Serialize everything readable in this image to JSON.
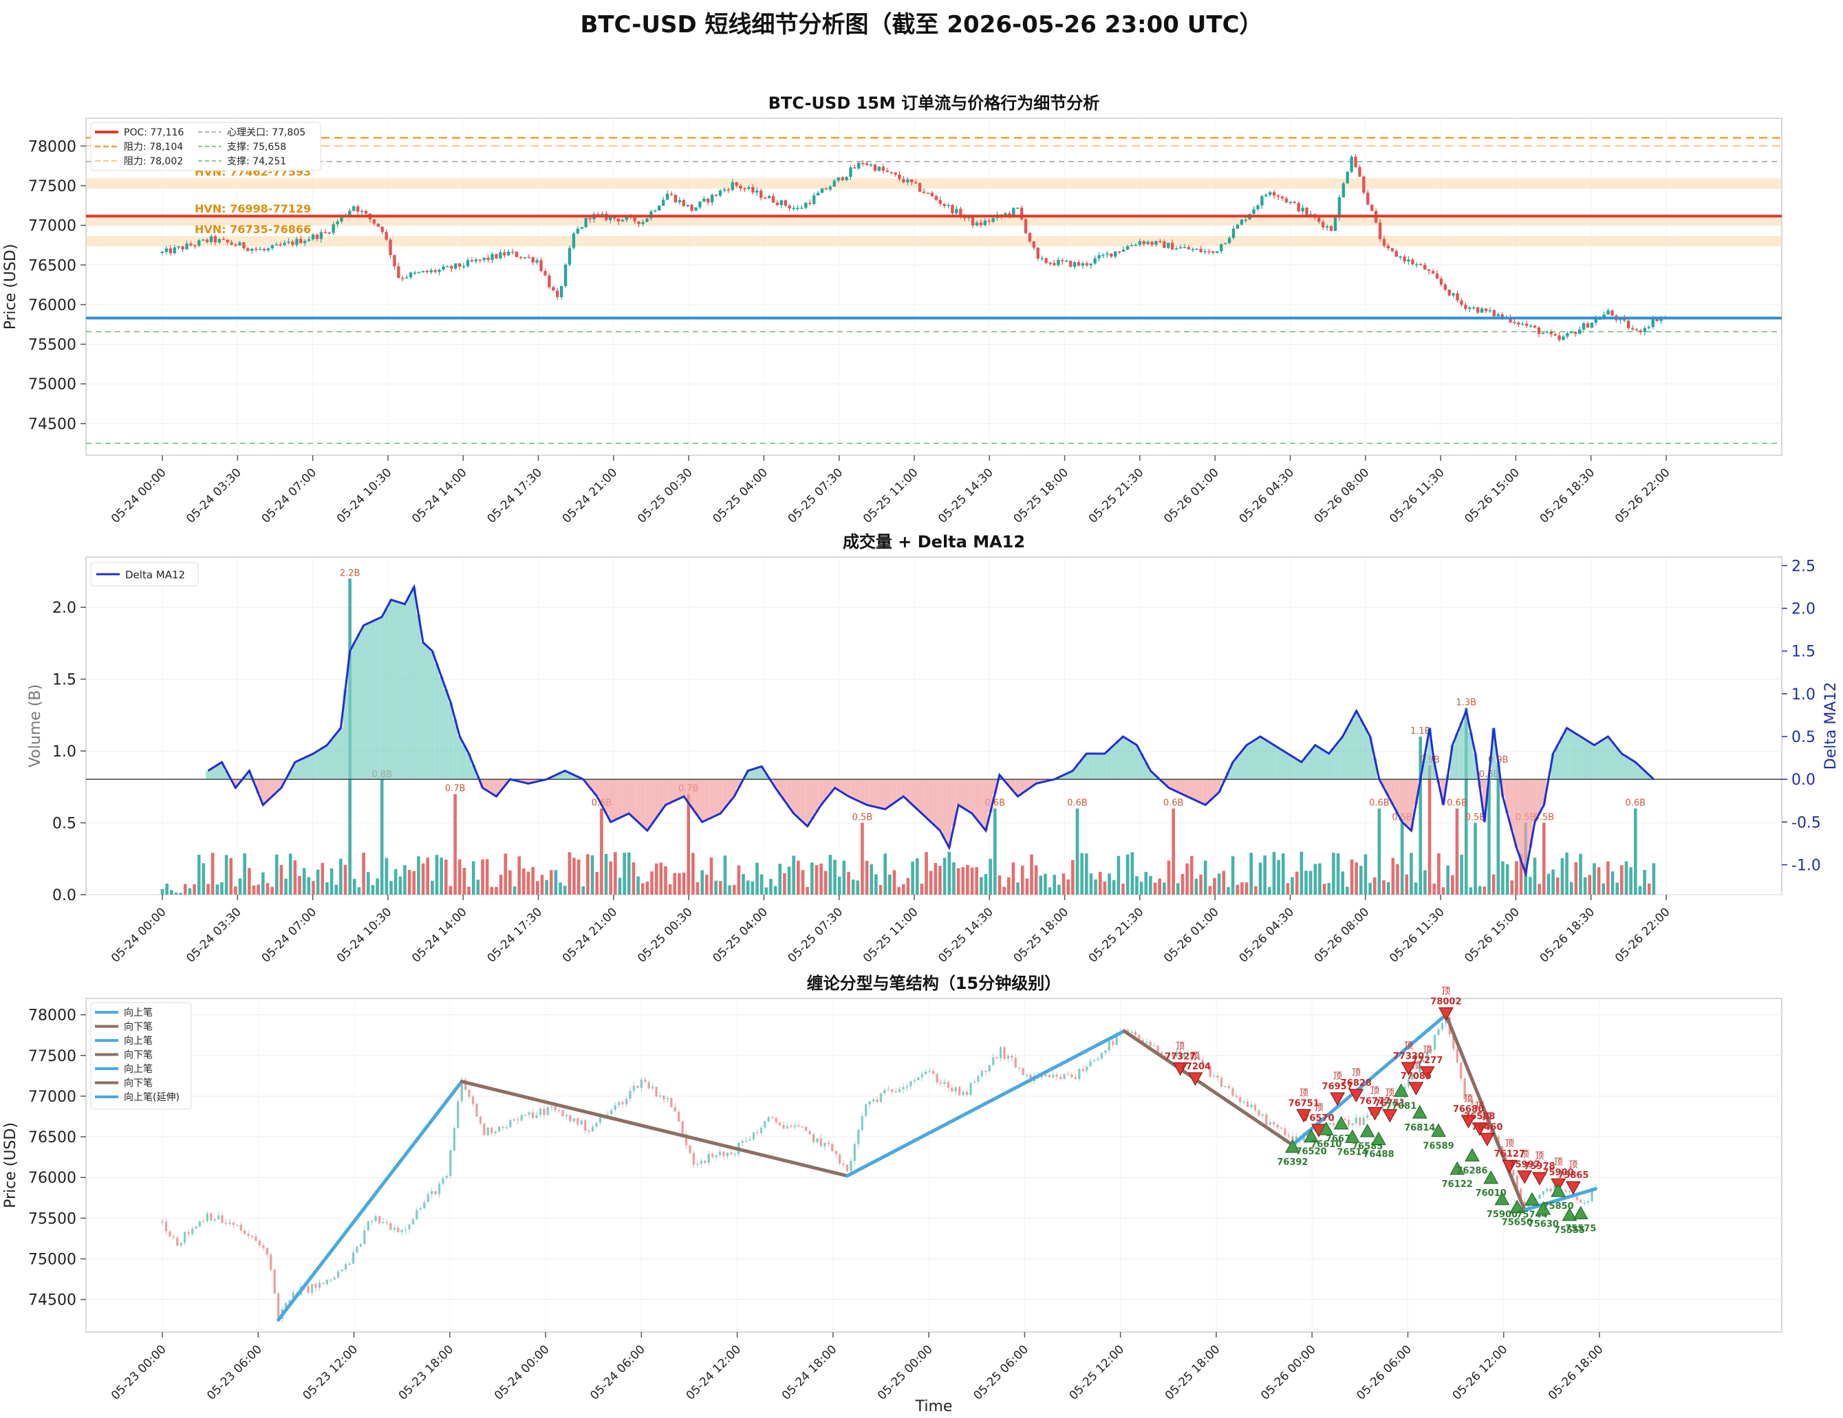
{
  "title": "BTC-USD 短线细节分析图（截至 2026-05-26 23:00 UTC）",
  "colors": {
    "up": "#26a69a",
    "down": "#e05555",
    "poc": "#e0382c",
    "resistance": "#f0a030",
    "support": "#66bb6a",
    "psych": "#9e9e9e",
    "current": "#2e8fd6",
    "hvn": "#fde3c0",
    "delta": "#1f2fd0",
    "bi_up": "#4aa8e0",
    "bi_down": "#8d6e63"
  },
  "chart_data": [
    {
      "type": "candlestick",
      "title": "BTC-USD 15M 订单流与价格行为细节分析",
      "ylabel": "Price (USD)",
      "ylim": [
        74100,
        78350
      ],
      "yticks": [
        74500,
        75000,
        75500,
        76000,
        76500,
        77000,
        77500,
        78000
      ],
      "xticks": [
        "05-24 00:00",
        "05-24 03:30",
        "05-24 07:00",
        "05-24 10:30",
        "05-24 14:00",
        "05-24 17:30",
        "05-24 21:00",
        "05-25 00:30",
        "05-25 04:00",
        "05-25 07:30",
        "05-25 11:00",
        "05-25 14:30",
        "05-25 18:00",
        "05-25 21:30",
        "05-26 01:00",
        "05-26 04:30",
        "05-26 08:00",
        "05-26 11:30",
        "05-26 15:00",
        "05-26 18:30",
        "05-26 22:00"
      ],
      "bars": 276,
      "price_path": [
        [
          0,
          76650
        ],
        [
          12,
          76820
        ],
        [
          25,
          76680
        ],
        [
          40,
          76900
        ],
        [
          47,
          77250
        ],
        [
          50,
          77120
        ],
        [
          54,
          76950
        ],
        [
          58,
          76350
        ],
        [
          70,
          76450
        ],
        [
          85,
          76650
        ],
        [
          92,
          76560
        ],
        [
          97,
          76050
        ],
        [
          101,
          76880
        ],
        [
          105,
          77120
        ],
        [
          118,
          77050
        ],
        [
          124,
          77400
        ],
        [
          130,
          77200
        ],
        [
          140,
          77520
        ],
        [
          156,
          77200
        ],
        [
          172,
          77800
        ],
        [
          184,
          77520
        ],
        [
          200,
          77000
        ],
        [
          210,
          77200
        ],
        [
          215,
          76550
        ],
        [
          226,
          76500
        ],
        [
          240,
          76800
        ],
        [
          258,
          76650
        ],
        [
          272,
          77450
        ],
        [
          287,
          76950
        ],
        [
          292,
          77900
        ],
        [
          300,
          76700
        ],
        [
          310,
          76450
        ],
        [
          319,
          76000
        ],
        [
          332,
          75800
        ],
        [
          343,
          75550
        ],
        [
          355,
          75900
        ],
        [
          362,
          75650
        ],
        [
          367,
          75830
        ],
        [
          369,
          75840
        ]
      ],
      "legend_items": [
        "POC: 77,116",
        "阻力: 78,104",
        "阻力: 78,002",
        "心理关口: 77,805",
        "支撑: 75,658",
        "支撑: 74,251"
      ],
      "levels": {
        "poc": 77116,
        "resistance": [
          78104,
          78002
        ],
        "psych": 77805,
        "support": [
          75658,
          74251
        ],
        "current": 75830
      },
      "hvn": [
        {
          "label": "HVN: 77462-77593",
          "low": 77462,
          "high": 77593
        },
        {
          "label": "HVN: 76998-77129",
          "low": 76998,
          "high": 77129
        },
        {
          "label": "HVN: 76735-76866",
          "low": 76735,
          "high": 76866
        }
      ]
    },
    {
      "type": "bar",
      "title": "成交量 + Delta MA12",
      "ylabel": "Volume (B)",
      "y2label": "Delta MA12",
      "ylim": [
        0,
        2.35
      ],
      "y2lim": [
        -1.35,
        2.6
      ],
      "yticks": [
        0.0,
        0.5,
        1.0,
        1.5,
        2.0
      ],
      "y2ticks": [
        -1.0,
        -0.5,
        0.0,
        0.5,
        1.0,
        1.5,
        2.0,
        2.5
      ],
      "xticks": [
        "05-24 00:00",
        "05-24 03:30",
        "05-24 07:00",
        "05-24 10:30",
        "05-24 14:00",
        "05-24 17:30",
        "05-24 21:00",
        "05-25 00:30",
        "05-25 04:00",
        "05-25 07:30",
        "05-25 11:00",
        "05-25 14:30",
        "05-25 18:00",
        "05-25 21:30",
        "05-26 01:00",
        "05-26 04:30",
        "05-26 08:00",
        "05-26 11:30",
        "05-26 15:00",
        "05-26 18:30",
        "05-26 22:00"
      ],
      "legend": "Delta MA12",
      "spikes": [
        {
          "bar": 41,
          "value": 2.2,
          "label": "2.2B"
        },
        {
          "bar": 48,
          "value": 0.8,
          "label": "0.8B"
        },
        {
          "bar": 64,
          "value": 0.7,
          "label": "0.7B"
        },
        {
          "bar": 96,
          "value": 0.6,
          "label": "0.6B"
        },
        {
          "bar": 115,
          "value": 0.7,
          "label": "0.7B"
        },
        {
          "bar": 153,
          "value": 0.5,
          "label": "0.5B"
        },
        {
          "bar": 182,
          "value": 0.6,
          "label": "0.6B"
        },
        {
          "bar": 200,
          "value": 0.6,
          "label": "0.6B"
        },
        {
          "bar": 221,
          "value": 0.6,
          "label": "0.6B"
        },
        {
          "bar": 266,
          "value": 0.6,
          "label": "0.6B"
        },
        {
          "bar": 271,
          "value": 0.5,
          "label": "0.5B"
        },
        {
          "bar": 275,
          "value": 1.1,
          "label": "1.1B"
        },
        {
          "bar": 277,
          "value": 0.9,
          "label": "0.9B"
        },
        {
          "bar": 283,
          "value": 0.6,
          "label": "0.6B"
        },
        {
          "bar": 285,
          "value": 1.3,
          "label": "1.3B"
        },
        {
          "bar": 287,
          "value": 0.5,
          "label": "0.5B"
        },
        {
          "bar": 290,
          "value": 0.8,
          "label": "0.8B"
        },
        {
          "bar": 292,
          "value": 0.9,
          "label": "0.9B"
        },
        {
          "bar": 298,
          "value": 0.5,
          "label": "0.5B"
        },
        {
          "bar": 302,
          "value": 0.5,
          "label": "0.5B"
        },
        {
          "bar": 322,
          "value": 0.6,
          "label": "0.6B"
        }
      ],
      "delta_path": [
        [
          10,
          0.1
        ],
        [
          13,
          0.2
        ],
        [
          16,
          -0.1
        ],
        [
          19,
          0.1
        ],
        [
          22,
          -0.3
        ],
        [
          26,
          -0.1
        ],
        [
          29,
          0.2
        ],
        [
          33,
          0.3
        ],
        [
          36,
          0.4
        ],
        [
          39,
          0.6
        ],
        [
          41,
          1.5
        ],
        [
          44,
          1.8
        ],
        [
          48,
          1.9
        ],
        [
          50,
          2.1
        ],
        [
          53,
          2.05
        ],
        [
          55,
          2.25
        ],
        [
          57,
          1.6
        ],
        [
          59,
          1.5
        ],
        [
          61,
          1.2
        ],
        [
          63,
          0.9
        ],
        [
          65,
          0.5
        ],
        [
          67,
          0.3
        ],
        [
          70,
          -0.1
        ],
        [
          73,
          -0.2
        ],
        [
          76,
          0.0
        ],
        [
          80,
          -0.05
        ],
        [
          84,
          0.0
        ],
        [
          88,
          0.1
        ],
        [
          92,
          0.0
        ],
        [
          95,
          -0.2
        ],
        [
          98,
          -0.5
        ],
        [
          102,
          -0.4
        ],
        [
          106,
          -0.6
        ],
        [
          110,
          -0.3
        ],
        [
          114,
          -0.2
        ],
        [
          118,
          -0.5
        ],
        [
          122,
          -0.4
        ],
        [
          125,
          -0.2
        ],
        [
          128,
          0.1
        ],
        [
          131,
          0.15
        ],
        [
          134,
          -0.1
        ],
        [
          138,
          -0.4
        ],
        [
          141,
          -0.55
        ],
        [
          144,
          -0.3
        ],
        [
          147,
          -0.1
        ],
        [
          150,
          -0.2
        ],
        [
          154,
          -0.3
        ],
        [
          158,
          -0.35
        ],
        [
          162,
          -0.2
        ],
        [
          166,
          -0.4
        ],
        [
          170,
          -0.6
        ],
        [
          172,
          -0.8
        ],
        [
          174,
          -0.3
        ],
        [
          177,
          -0.4
        ],
        [
          180,
          -0.6
        ],
        [
          183,
          0.05
        ],
        [
          187,
          -0.2
        ],
        [
          191,
          -0.05
        ],
        [
          195,
          0.0
        ],
        [
          199,
          0.1
        ],
        [
          202,
          0.3
        ],
        [
          206,
          0.3
        ],
        [
          210,
          0.5
        ],
        [
          213,
          0.4
        ],
        [
          216,
          0.1
        ],
        [
          220,
          -0.1
        ],
        [
          224,
          -0.2
        ],
        [
          228,
          -0.3
        ],
        [
          231,
          -0.15
        ],
        [
          234,
          0.2
        ],
        [
          237,
          0.4
        ],
        [
          240,
          0.5
        ],
        [
          243,
          0.4
        ],
        [
          246,
          0.3
        ],
        [
          249,
          0.2
        ],
        [
          252,
          0.4
        ],
        [
          255,
          0.3
        ],
        [
          258,
          0.5
        ],
        [
          261,
          0.8
        ],
        [
          264,
          0.5
        ],
        [
          266,
          0.0
        ],
        [
          269,
          -0.3
        ],
        [
          271,
          -0.5
        ],
        [
          273,
          -0.6
        ],
        [
          275,
          0.0
        ],
        [
          277,
          0.6
        ],
        [
          278,
          0.2
        ],
        [
          280,
          -0.3
        ],
        [
          282,
          0.4
        ],
        [
          285,
          0.8
        ],
        [
          287,
          0.3
        ],
        [
          289,
          -0.5
        ],
        [
          291,
          0.6
        ],
        [
          293,
          -0.2
        ],
        [
          296,
          -0.8
        ],
        [
          298,
          -1.1
        ],
        [
          300,
          -0.5
        ],
        [
          302,
          -0.3
        ],
        [
          304,
          0.3
        ],
        [
          307,
          0.6
        ],
        [
          310,
          0.5
        ],
        [
          313,
          0.4
        ],
        [
          316,
          0.5
        ],
        [
          319,
          0.3
        ],
        [
          322,
          0.2
        ],
        [
          324,
          0.1
        ],
        [
          326,
          0.0
        ]
      ]
    },
    {
      "type": "line",
      "title": "缠论分型与笔结构（15分钟级别）",
      "xlabel": "Time",
      "ylabel": "Price (USD)",
      "ylim": [
        74100,
        78200
      ],
      "yticks": [
        74500,
        75000,
        75500,
        76000,
        76500,
        77000,
        77500,
        78000
      ],
      "xticks": [
        "05-23 00:00",
        "05-23 06:00",
        "05-23 12:00",
        "05-23 18:00",
        "05-24 00:00",
        "05-24 06:00",
        "05-24 12:00",
        "05-24 18:00",
        "05-25 00:00",
        "05-25 06:00",
        "05-25 12:00",
        "05-25 18:00",
        "05-26 00:00",
        "05-26 06:00",
        "05-26 12:00",
        "05-26 18:00"
      ],
      "legend": [
        "向上笔",
        "向下笔",
        "向上笔",
        "向下笔",
        "向上笔",
        "向下笔",
        "向上笔(延伸)"
      ],
      "bi_points": [
        {
          "t": 31,
          "p": 74250
        },
        {
          "t": 80,
          "p": 77180
        },
        {
          "t": 183,
          "p": 76020
        },
        {
          "t": 257,
          "p": 77800
        },
        {
          "t": 302,
          "p": 76400
        },
        {
          "t": 343,
          "p": 78000
        },
        {
          "t": 364,
          "p": 75600
        },
        {
          "t": 383,
          "p": 75860
        }
      ],
      "top_labels": [
        "77327",
        "77204",
        "76751",
        "76570",
        "76957",
        "76828",
        "76777",
        "76751",
        "77330",
        "77277",
        "77085",
        "76680",
        "76588",
        "76460",
        "76127",
        "75997",
        "75978",
        "75900",
        "75865",
        "78002"
      ],
      "bottom_labels": [
        "76392",
        "76520",
        "76610",
        "76679",
        "76514",
        "76585",
        "76488",
        "77081",
        "76814",
        "76589",
        "76122",
        "76286",
        "76010",
        "75900",
        "75650",
        "75744",
        "75630",
        "75850",
        "75555",
        "75575"
      ],
      "top_label_mark": "顶",
      "price_path": [
        [
          0,
          75450
        ],
        [
          4,
          75200
        ],
        [
          12,
          75550
        ],
        [
          20,
          75380
        ],
        [
          28,
          75100
        ],
        [
          31,
          74300
        ],
        [
          36,
          74600
        ],
        [
          44,
          74700
        ],
        [
          50,
          74950
        ],
        [
          56,
          75500
        ],
        [
          64,
          75350
        ],
        [
          70,
          75700
        ],
        [
          76,
          76000
        ],
        [
          80,
          77200
        ],
        [
          86,
          76550
        ],
        [
          94,
          76700
        ],
        [
          104,
          76850
        ],
        [
          114,
          76600
        ],
        [
          122,
          76900
        ],
        [
          128,
          77200
        ],
        [
          136,
          76900
        ],
        [
          142,
          76200
        ],
        [
          152,
          76300
        ],
        [
          162,
          76700
        ],
        [
          170,
          76600
        ],
        [
          180,
          76300
        ],
        [
          183,
          76050
        ],
        [
          188,
          76900
        ],
        [
          196,
          77100
        ],
        [
          204,
          77300
        ],
        [
          214,
          77000
        ],
        [
          224,
          77550
        ],
        [
          232,
          77200
        ],
        [
          244,
          77250
        ],
        [
          257,
          77800
        ],
        [
          266,
          77550
        ],
        [
          276,
          77450
        ],
        [
          288,
          76950
        ],
        [
          302,
          76450
        ],
        [
          310,
          76650
        ],
        [
          320,
          76700
        ],
        [
          330,
          76950
        ],
        [
          338,
          77500
        ],
        [
          343,
          78000
        ],
        [
          348,
          77000
        ],
        [
          356,
          76500
        ],
        [
          364,
          75650
        ],
        [
          372,
          75900
        ],
        [
          380,
          75700
        ],
        [
          383,
          75860
        ]
      ]
    }
  ]
}
